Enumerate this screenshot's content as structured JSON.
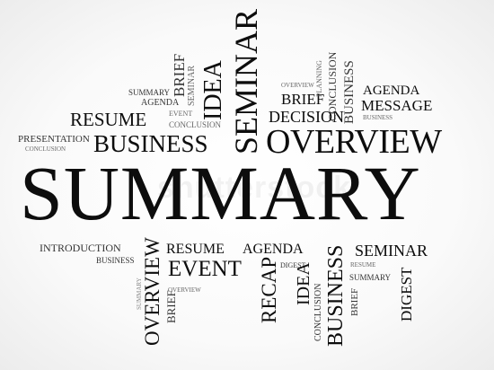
{
  "watermark": "shutterstock",
  "words": {
    "summary_main": "SUMMARY",
    "overview_big": "OVERVIEW",
    "business_mid": "BUSINESS",
    "resume_top": "RESUME",
    "presentation": "PRESENTATION",
    "conclusion_left": "CONCLUSION",
    "summary_small": "SUMMARY",
    "agenda_top": "AGENDA",
    "event_small": "EVENT",
    "conclusion_small": "CONCLUSION",
    "brief_vert": "BRIEF",
    "seminar_vert_small": "SEMINAR",
    "idea_vert": "IDEA",
    "seminar_vert_big": "SEMINAR",
    "overview_tiny": "OVERVIEW",
    "brief_right": "BRIEF",
    "decision": "DECISION",
    "planning_vert": "PLANNING",
    "conclusion_vert": "CONCLUSION",
    "business_vert_right": "BUSINESS",
    "agenda_right": "AGENDA",
    "message": "MESSAGE",
    "business_tiny_right": "BUSINESS",
    "introduction": "INTRODUCTION",
    "business_left": "BUSINESS",
    "overview_vert": "OVERVIEW",
    "brief_vert_bottom": "BRIEF",
    "summary_vert_tiny": "SUMMARY",
    "resume_bottom": "RESUME",
    "agenda_bottom": "AGENDA",
    "event_bottom": "EVENT",
    "overview_bottom_tiny": "OVERVIEW",
    "recap_vert": "RECAP",
    "digest_small": "DIGEST",
    "idea_vert_bottom": "IDEA",
    "conclusion_vert_bottom": "CONCLUSION",
    "business_vert_bottom": "BUSINESS",
    "seminar_bottom": "SEMINAR",
    "resume_tiny": "RESUME",
    "summary_bottom_small": "SUMMARY",
    "brief_vert_bottom_right": "BRIEF",
    "digest_vert": "DIGEST"
  }
}
